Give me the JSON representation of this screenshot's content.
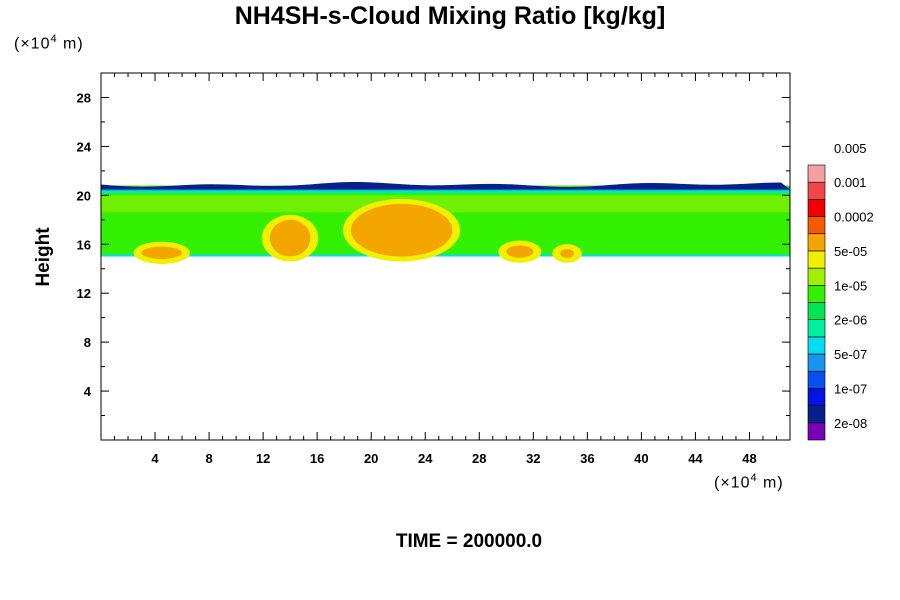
{
  "chart_data": {
    "type": "heatmap",
    "title": "NH4SH-s-Cloud Mixing Ratio [kg/kg]",
    "ylabel": "Height",
    "y_unit": "(×10⁴ m)",
    "x_unit": "(×10⁴ m)",
    "time_label": "TIME = 200000.0",
    "xlim": [
      0,
      51
    ],
    "ylim": [
      0,
      30
    ],
    "x_ticks": [
      4,
      8,
      12,
      16,
      20,
      24,
      28,
      32,
      36,
      40,
      44,
      48
    ],
    "y_ticks": [
      4,
      8,
      12,
      16,
      20,
      24,
      28
    ],
    "colorbar": {
      "colors": [
        "#7a00b4",
        "#0a1e8c",
        "#0014e6",
        "#0a50f0",
        "#1496f0",
        "#00dcf0",
        "#00f0a0",
        "#00e650",
        "#32f000",
        "#a0f000",
        "#f0f000",
        "#f5a500",
        "#f55a00",
        "#f00000",
        "#f04646",
        "#f5a0a0"
      ],
      "labels": [
        "2e-08",
        "1e-07",
        "5e-07",
        "2e-06",
        "1e-05",
        "5e-05",
        "0.0002",
        "0.001",
        "0.005"
      ]
    },
    "cloud_layer": {
      "base_height": 15,
      "top_height": 20.8,
      "top_edge_color": "#0a1e8c",
      "body_color": "#32f000"
    },
    "high_regions": [
      {
        "x_range": [
          3,
          6
        ],
        "y_range": [
          14.8,
          15.8
        ],
        "level": "0.0002"
      },
      {
        "x_range": [
          12.5,
          15.5
        ],
        "y_range": [
          15,
          18
        ],
        "level": "0.0002"
      },
      {
        "x_range": [
          18.5,
          26
        ],
        "y_range": [
          15,
          19.3
        ],
        "level": "0.0002"
      },
      {
        "x_range": [
          30,
          32
        ],
        "y_range": [
          14.9,
          15.9
        ],
        "level": "0.0002"
      },
      {
        "x_range": [
          34,
          35
        ],
        "y_range": [
          14.9,
          15.6
        ],
        "level": "0.0002"
      }
    ]
  }
}
